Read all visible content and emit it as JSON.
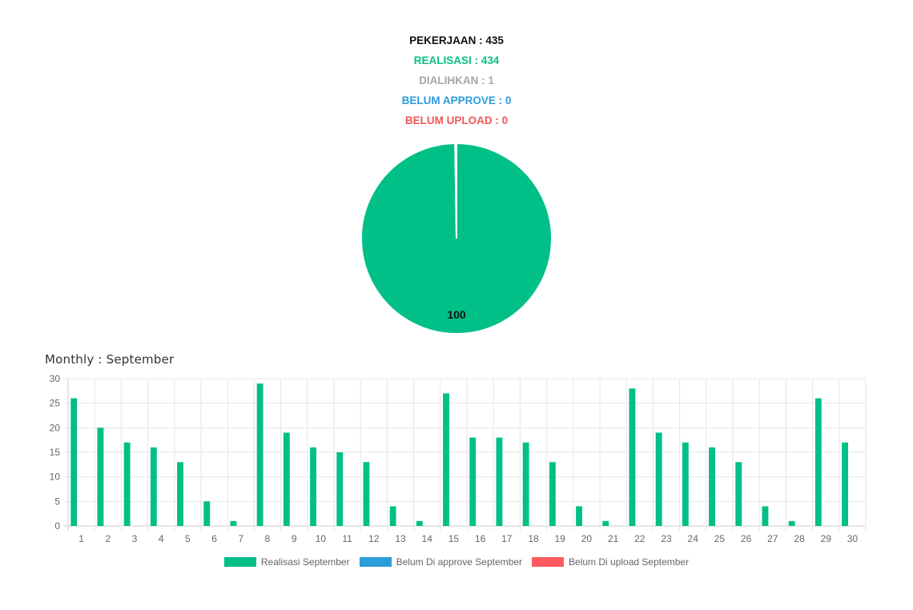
{
  "summary": {
    "pekerjaan": {
      "text": "PEKERJAAN : 435",
      "color": "#111111"
    },
    "realisasi": {
      "text": "REALISASI : 434",
      "color": "#0ABF82"
    },
    "dialihkan": {
      "text": "DIALIHKAN : 1",
      "color": "#A6A6A6"
    },
    "belum_approve": {
      "text": "BELUM APPROVE : 0",
      "color": "#2D9CDB"
    },
    "belum_upload": {
      "text": "BELUM UPLOAD : 0",
      "color": "#F25757"
    }
  },
  "monthly_title": "Monthly : September",
  "chart_data": [
    {
      "type": "pie",
      "slices": [
        {
          "name": "Realisasi",
          "value": 434,
          "color": "#00BF87"
        },
        {
          "name": "Dialihkan",
          "value": 1,
          "color": "#CCCCCC"
        },
        {
          "name": "Belum approve",
          "value": 0,
          "color": "#2D9CDB"
        },
        {
          "name": "Belum upload",
          "value": 0,
          "color": "#F25757"
        }
      ],
      "data_label": "100"
    },
    {
      "type": "bar",
      "categories": [
        "1",
        "2",
        "3",
        "4",
        "5",
        "6",
        "7",
        "8",
        "9",
        "10",
        "11",
        "12",
        "13",
        "14",
        "15",
        "16",
        "17",
        "18",
        "19",
        "20",
        "21",
        "22",
        "23",
        "24",
        "25",
        "26",
        "27",
        "28",
        "29",
        "30"
      ],
      "series": [
        {
          "name": "Realisasi September",
          "color": "#00BF87",
          "values": [
            26,
            20,
            17,
            16,
            13,
            5,
            1,
            29,
            19,
            16,
            15,
            13,
            4,
            1,
            27,
            18,
            18,
            17,
            13,
            4,
            1,
            28,
            19,
            17,
            16,
            13,
            4,
            1,
            26,
            17
          ]
        },
        {
          "name": "Belum Di approve September",
          "color": "#2D9CDB",
          "values": [
            0,
            0,
            0,
            0,
            0,
            0,
            0,
            0,
            0,
            0,
            0,
            0,
            0,
            0,
            0,
            0,
            0,
            0,
            0,
            0,
            0,
            0,
            0,
            0,
            0,
            0,
            0,
            0,
            0,
            0
          ]
        },
        {
          "name": "Belum Di upload September",
          "color": "#FF5A5F",
          "values": [
            0,
            0,
            0,
            0,
            0,
            0,
            0,
            0,
            0,
            0,
            0,
            0,
            0,
            0,
            0,
            0,
            0,
            0,
            0,
            0,
            0,
            0,
            0,
            0,
            0,
            0,
            0,
            0,
            0,
            0
          ]
        }
      ],
      "yticks": [
        "0",
        "5",
        "10",
        "15",
        "20",
        "25",
        "30"
      ],
      "ylim": [
        0,
        30
      ],
      "grid": true,
      "legend": "bottom-center"
    }
  ]
}
